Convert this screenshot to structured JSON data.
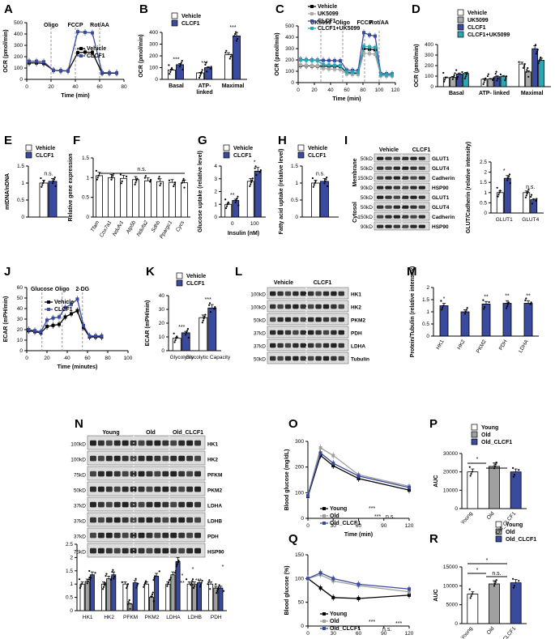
{
  "colors": {
    "vehicle": "#000000",
    "clcf1": "#3a4a9e",
    "ukv": "#aaaaaa",
    "combo": "#2ba6b3",
    "young": "#ffffff",
    "old": "#a0a0a0",
    "oldc": "#3a4a9e",
    "blot": "#3a3a3a"
  },
  "chart_data": [
    {
      "id": "A",
      "type": "line",
      "ylabel": "OCR (pmol/min)",
      "xlabel": "Time (min)",
      "xlim": [
        0,
        80
      ],
      "ylim": [
        0,
        500
      ],
      "xticks": [
        0,
        20,
        40,
        60,
        80
      ],
      "yticks": [
        0,
        100,
        200,
        300,
        400,
        500
      ],
      "annotations": [
        {
          "label": "Oligo",
          "x": 20
        },
        {
          "label": "FCCP",
          "x": 40
        },
        {
          "label": "Rot/AA",
          "x": 60
        }
      ],
      "series": [
        {
          "name": "Vehicle",
          "color": "#000000",
          "x": [
            2,
            8,
            14,
            22,
            28,
            34,
            42,
            48,
            54,
            62,
            68,
            74
          ],
          "y": [
            145,
            145,
            140,
            80,
            75,
            74,
            235,
            240,
            238,
            55,
            55,
            55
          ]
        },
        {
          "name": "CLCF1",
          "color": "#3a4a9e",
          "x": [
            2,
            8,
            14,
            22,
            28,
            34,
            42,
            48,
            54,
            62,
            68,
            74
          ],
          "y": [
            160,
            160,
            155,
            80,
            78,
            76,
            420,
            415,
            410,
            60,
            58,
            58
          ]
        }
      ]
    },
    {
      "id": "B",
      "type": "bar",
      "ylabel": "OCR (pmol/min)",
      "ylim": [
        0,
        400
      ],
      "yticks": [
        0,
        100,
        200,
        300,
        400
      ],
      "categories": [
        "Basal",
        "ATP-\nlinked",
        "Maximal"
      ],
      "series": [
        {
          "name": "Vehicle",
          "values": [
            80,
            55,
            210
          ]
        },
        {
          "name": "CLCF1",
          "values": [
            125,
            100,
            370
          ]
        }
      ],
      "significance": [
        "***",
        "***",
        "***"
      ]
    },
    {
      "id": "C",
      "type": "line",
      "ylabel": "OCR (pmol/min)",
      "xlabel": "Time (min)",
      "xlim": [
        0,
        120
      ],
      "ylim": [
        0,
        500
      ],
      "xticks": [
        0,
        20,
        40,
        60,
        80,
        100,
        120
      ],
      "yticks": [
        0,
        100,
        200,
        300,
        400,
        500
      ],
      "annotations": [
        {
          "label": "UK5099",
          "x": 28
        },
        {
          "label": "Oligo",
          "x": 55
        },
        {
          "label": "FCCP",
          "x": 82
        },
        {
          "label": "Rot/AA",
          "x": 100
        }
      ],
      "series": [
        {
          "name": "Vehicle",
          "color": "#000000",
          "x": [
            3,
            10,
            17,
            24,
            31,
            38,
            45,
            52,
            60,
            67,
            74,
            81,
            88,
            95,
            102,
            109,
            116
          ],
          "y": [
            150,
            148,
            146,
            145,
            145,
            144,
            143,
            142,
            88,
            85,
            84,
            300,
            295,
            290,
            70,
            68,
            67
          ]
        },
        {
          "name": "UK5099",
          "color": "#aaaaaa",
          "x": [
            3,
            10,
            17,
            24,
            31,
            38,
            45,
            52,
            60,
            67,
            74,
            81,
            88,
            95,
            102,
            109,
            116
          ],
          "y": [
            155,
            152,
            150,
            148,
            125,
            120,
            118,
            116,
            75,
            73,
            72,
            260,
            255,
            250,
            60,
            58,
            58
          ]
        },
        {
          "name": "CLCF1",
          "color": "#3a4a9e",
          "x": [
            3,
            10,
            17,
            24,
            31,
            38,
            45,
            52,
            60,
            67,
            74,
            81,
            88,
            95,
            102,
            109,
            116
          ],
          "y": [
            205,
            202,
            200,
            198,
            196,
            195,
            194,
            192,
            110,
            108,
            106,
            440,
            420,
            410,
            80,
            78,
            77
          ]
        },
        {
          "name": "CLCF1+UK5099",
          "color": "#2ba6b3",
          "x": [
            3,
            10,
            17,
            24,
            31,
            38,
            45,
            52,
            60,
            67,
            74,
            81,
            88,
            95,
            102,
            109,
            116
          ],
          "y": [
            200,
            197,
            195,
            193,
            160,
            155,
            153,
            150,
            95,
            92,
            90,
            320,
            315,
            310,
            70,
            68,
            67
          ]
        }
      ]
    },
    {
      "id": "D",
      "type": "bar",
      "ylabel": "OCR (pmol/min)",
      "ylim": [
        0,
        400
      ],
      "yticks": [
        0,
        100,
        200,
        300,
        400
      ],
      "categories": [
        "Basal",
        "ATP- linked",
        "Maximal"
      ],
      "series": [
        {
          "name": "Vehicle",
          "values": [
            85,
            70,
            215
          ]
        },
        {
          "name": "UK5099",
          "values": [
            90,
            72,
            140
          ]
        },
        {
          "name": "CLCF1",
          "values": [
            120,
            95,
            360
          ]
        },
        {
          "name": "CLCF1+UK5099",
          "values": [
            125,
            98,
            250
          ]
        }
      ]
    },
    {
      "id": "E",
      "type": "bar",
      "ylabel": "mtDNA/nDNA",
      "ylim": [
        0,
        1.5
      ],
      "yticks": [
        0,
        0.5,
        1.0,
        1.5
      ],
      "categories": [
        ""
      ],
      "series": [
        {
          "name": "Vehicle",
          "values": [
            1.0
          ]
        },
        {
          "name": "CLCF1",
          "values": [
            1.05
          ]
        }
      ],
      "significance": [
        "n.s."
      ]
    },
    {
      "id": "F",
      "type": "bar",
      "ylabel": "Relative gene expression",
      "ylim": [
        0,
        1.5
      ],
      "yticks": [
        0,
        0.5,
        1.0,
        1.5
      ],
      "categories": [
        "Tfam",
        "Cox7a1",
        "Ndufv1",
        "Atp5b",
        "Ndufa2",
        "Sdhb",
        "Ppargc1",
        "Cycs"
      ],
      "values": [
        1.05,
        1.0,
        0.98,
        0.95,
        0.92,
        0.9,
        0.88,
        0.87
      ],
      "significance": "n.s."
    },
    {
      "id": "G",
      "type": "bar",
      "ylabel": "Glucose uptake (relative level)",
      "xlabel": "Insulin (nM)",
      "ylim": [
        0,
        4
      ],
      "yticks": [
        0,
        1,
        2,
        3,
        4
      ],
      "categories": [
        "0",
        "100"
      ],
      "series": [
        {
          "name": "Vehicle",
          "values": [
            1.0,
            2.8
          ]
        },
        {
          "name": "CLCF1",
          "values": [
            1.3,
            3.6
          ]
        }
      ],
      "significance": [
        "**",
        "*"
      ]
    },
    {
      "id": "H",
      "type": "bar",
      "ylabel": "Fatty acid uptake (relative level)",
      "ylim": [
        0,
        1.5
      ],
      "yticks": [
        0,
        0.5,
        1.0,
        1.5
      ],
      "categories": [
        ""
      ],
      "series": [
        {
          "name": "Vehicle",
          "values": [
            1.0
          ]
        },
        {
          "name": "CLCF1",
          "values": [
            1.05
          ]
        }
      ],
      "significance": [
        "n.s."
      ]
    },
    {
      "id": "I",
      "type": "bar",
      "ylabel": "GLUT/Cadherin (relative intensity)",
      "ylim": [
        0,
        2.5
      ],
      "yticks": [
        0,
        0.5,
        1.0,
        1.5,
        2.0,
        2.5
      ],
      "categories": [
        "GLUT1",
        "GLUT4"
      ],
      "series": [
        {
          "name": "Vehicle",
          "values": [
            1.0,
            1.0
          ]
        },
        {
          "name": "CLCF1",
          "values": [
            1.7,
            0.65
          ]
        }
      ],
      "significance": [
        "*",
        "n.s."
      ]
    },
    {
      "id": "J",
      "type": "line",
      "ylabel": "ECAR (mPH/min)",
      "xlabel": "Time (minutes)",
      "xlim": [
        0,
        100
      ],
      "ylim": [
        0,
        60
      ],
      "xticks": [
        0,
        20,
        40,
        60,
        80,
        100
      ],
      "yticks": [
        0,
        10,
        20,
        30,
        40,
        50,
        60
      ],
      "annotations": [
        {
          "label": "Glucose",
          "x": 15
        },
        {
          "label": "Oligo",
          "x": 35
        },
        {
          "label": "2-DG",
          "x": 55
        }
      ],
      "series": [
        {
          "name": "Vehicle",
          "color": "#000000",
          "x": [
            2,
            8,
            14,
            20,
            26,
            32,
            38,
            44,
            50,
            56,
            62,
            68,
            74
          ],
          "y": [
            19,
            18,
            17,
            23,
            24,
            25,
            32,
            35,
            38,
            22,
            13,
            13,
            13
          ]
        },
        {
          "name": "CLCF1",
          "color": "#3a4a9e",
          "x": [
            2,
            8,
            14,
            20,
            26,
            32,
            38,
            44,
            50,
            56,
            62,
            68,
            74
          ],
          "y": [
            20,
            19,
            18,
            29,
            31,
            32,
            41,
            44,
            49,
            24,
            14,
            14,
            14
          ]
        }
      ]
    },
    {
      "id": "K",
      "type": "bar",
      "ylabel": "ECAR (mPH/min)",
      "ylim": [
        0,
        40
      ],
      "yticks": [
        0,
        10,
        20,
        30,
        40
      ],
      "categories": [
        "Glycolysis",
        "Glycolytic Capacity"
      ],
      "series": [
        {
          "name": "Vehicle",
          "values": [
            9,
            24
          ]
        },
        {
          "name": "CLCF1",
          "values": [
            13,
            31
          ]
        }
      ],
      "significance": [
        "***",
        "***"
      ]
    },
    {
      "id": "M",
      "type": "bar",
      "ylabel": "Protein/Tubulin (relative intensity)",
      "ylim": [
        0,
        2.0
      ],
      "yticks": [
        0,
        0.5,
        1.0,
        1.5,
        2.0
      ],
      "categories": [
        "HK1",
        "HK2",
        "PKM2",
        "PDH",
        "LDHA"
      ],
      "values": [
        1.25,
        1.0,
        1.32,
        1.35,
        1.35
      ],
      "significance": [
        "*",
        "",
        "**",
        "**",
        "**"
      ]
    },
    {
      "id": "N",
      "type": "bar",
      "ylim": [
        0,
        2.5
      ],
      "yticks": [
        0,
        0.5,
        1.0,
        1.5,
        2.0,
        2.5
      ],
      "categories": [
        "HK1",
        "HK2",
        "PFKM",
        "PKM2",
        "LDHA",
        "LDHB",
        "PDH"
      ],
      "series": [
        {
          "name": "Young",
          "values": [
            1.0,
            1.0,
            1.0,
            1.0,
            1.0,
            1.0,
            1.0
          ]
        },
        {
          "name": "Old",
          "values": [
            1.1,
            1.2,
            0.25,
            0.5,
            1.35,
            1.0,
            0.85
          ]
        },
        {
          "name": "Old_CLCF1",
          "values": [
            1.35,
            1.35,
            1.05,
            1.3,
            1.85,
            1.05,
            0.85
          ]
        }
      ]
    },
    {
      "id": "O",
      "type": "line",
      "ylabel": "Blood glucose (mg/dL)",
      "xlabel": "Time (min)",
      "xlim": [
        0,
        120
      ],
      "ylim": [
        0,
        300
      ],
      "xticks": [
        0,
        30,
        60,
        90,
        120
      ],
      "yticks": [
        0,
        100,
        200,
        300
      ],
      "series": [
        {
          "name": "Young",
          "color": "#000000",
          "x": [
            0,
            15,
            30,
            60,
            120
          ],
          "y": [
            85,
            245,
            205,
            155,
            110
          ]
        },
        {
          "name": "Old",
          "color": "#a0a0a0",
          "x": [
            0,
            15,
            30,
            60,
            120
          ],
          "y": [
            90,
            275,
            245,
            170,
            125
          ]
        },
        {
          "name": "Old_CLCF1",
          "color": "#3a4a9e",
          "x": [
            0,
            15,
            30,
            60,
            120
          ],
          "y": [
            88,
            255,
            215,
            165,
            120
          ]
        }
      ],
      "significance": [
        "***",
        "***",
        "n.s."
      ]
    },
    {
      "id": "P",
      "type": "bar",
      "ylabel": "AUC",
      "ylim": [
        0,
        30000
      ],
      "yticks": [
        0,
        10000,
        20000,
        30000
      ],
      "categories": [
        "Young",
        "Old",
        "Old_CLCF1"
      ],
      "values": [
        20000,
        23000,
        20000
      ],
      "significance": [
        "*",
        "*"
      ]
    },
    {
      "id": "Q",
      "type": "line",
      "ylabel": "Blood glucose (%)",
      "xlabel": "Time (min)",
      "xlim": [
        0,
        120
      ],
      "ylim": [
        0,
        150
      ],
      "xticks": [
        0,
        30,
        60,
        90,
        120
      ],
      "yticks": [
        0,
        50,
        100,
        150
      ],
      "series": [
        {
          "name": "Young",
          "color": "#000000",
          "x": [
            0,
            15,
            30,
            60,
            120
          ],
          "y": [
            100,
            80,
            60,
            58,
            65
          ]
        },
        {
          "name": "Old",
          "color": "#a0a0a0",
          "x": [
            0,
            15,
            30,
            60,
            120
          ],
          "y": [
            100,
            108,
            95,
            85,
            72
          ]
        },
        {
          "name": "Old_CLCF1",
          "color": "#3a4a9e",
          "x": [
            0,
            15,
            30,
            60,
            120
          ],
          "y": [
            100,
            112,
            100,
            88,
            78
          ]
        }
      ],
      "significance": [
        "***",
        "n.s.",
        "***"
      ]
    },
    {
      "id": "R",
      "type": "bar",
      "ylabel": "AUC",
      "ylim": [
        0,
        15000
      ],
      "yticks": [
        0,
        5000,
        10000,
        15000
      ],
      "categories": [
        "Young",
        "Old",
        "Old_CLCF1"
      ],
      "values": [
        7800,
        10500,
        10800
      ],
      "significance": [
        "*",
        "n.s.",
        "*"
      ]
    }
  ],
  "blots": {
    "I": {
      "header": [
        "Vehicle",
        "CLCF1"
      ],
      "groups": [
        "Membrane",
        "Cytosol"
      ],
      "proteins": [
        "GLUT1",
        "GLUT4",
        "Cadherin",
        "HSP90",
        "GLUT1",
        "GLUT4",
        "Cadherin",
        "HSP90"
      ],
      "mw": [
        "50kD",
        "50kD",
        "150kD",
        "90kD",
        "50kD",
        "50kD",
        "150kD",
        "90kD"
      ]
    },
    "L": {
      "header": [
        "Vehicle",
        "CLCF1"
      ],
      "proteins": [
        "HK1",
        "HK2",
        "PKM2",
        "PDH",
        "LDHA",
        "Tubulin"
      ],
      "mw": [
        "100kD",
        "100kD",
        "50kD",
        "37kD",
        "37kD",
        "50kD"
      ]
    },
    "N": {
      "header": [
        "Young",
        "Old",
        "Old_CLCF1"
      ],
      "proteins": [
        "HK1",
        "HK2",
        "PFKM",
        "PKM2",
        "LDHA",
        "LDHB",
        "PDH",
        "HSP90"
      ],
      "mw": [
        "100kD",
        "100kD",
        "75kD",
        "50kD",
        "37kD",
        "37kD",
        "37kD",
        "75kD"
      ]
    }
  },
  "legend_labels": {
    "vehicle": "Vehicle",
    "clcf1": "CLCF1",
    "uk": "UK5099",
    "combo": "CLCF1+UK5099",
    "young": "Young",
    "old": "Old",
    "oldc": "Old_CLCF1"
  }
}
